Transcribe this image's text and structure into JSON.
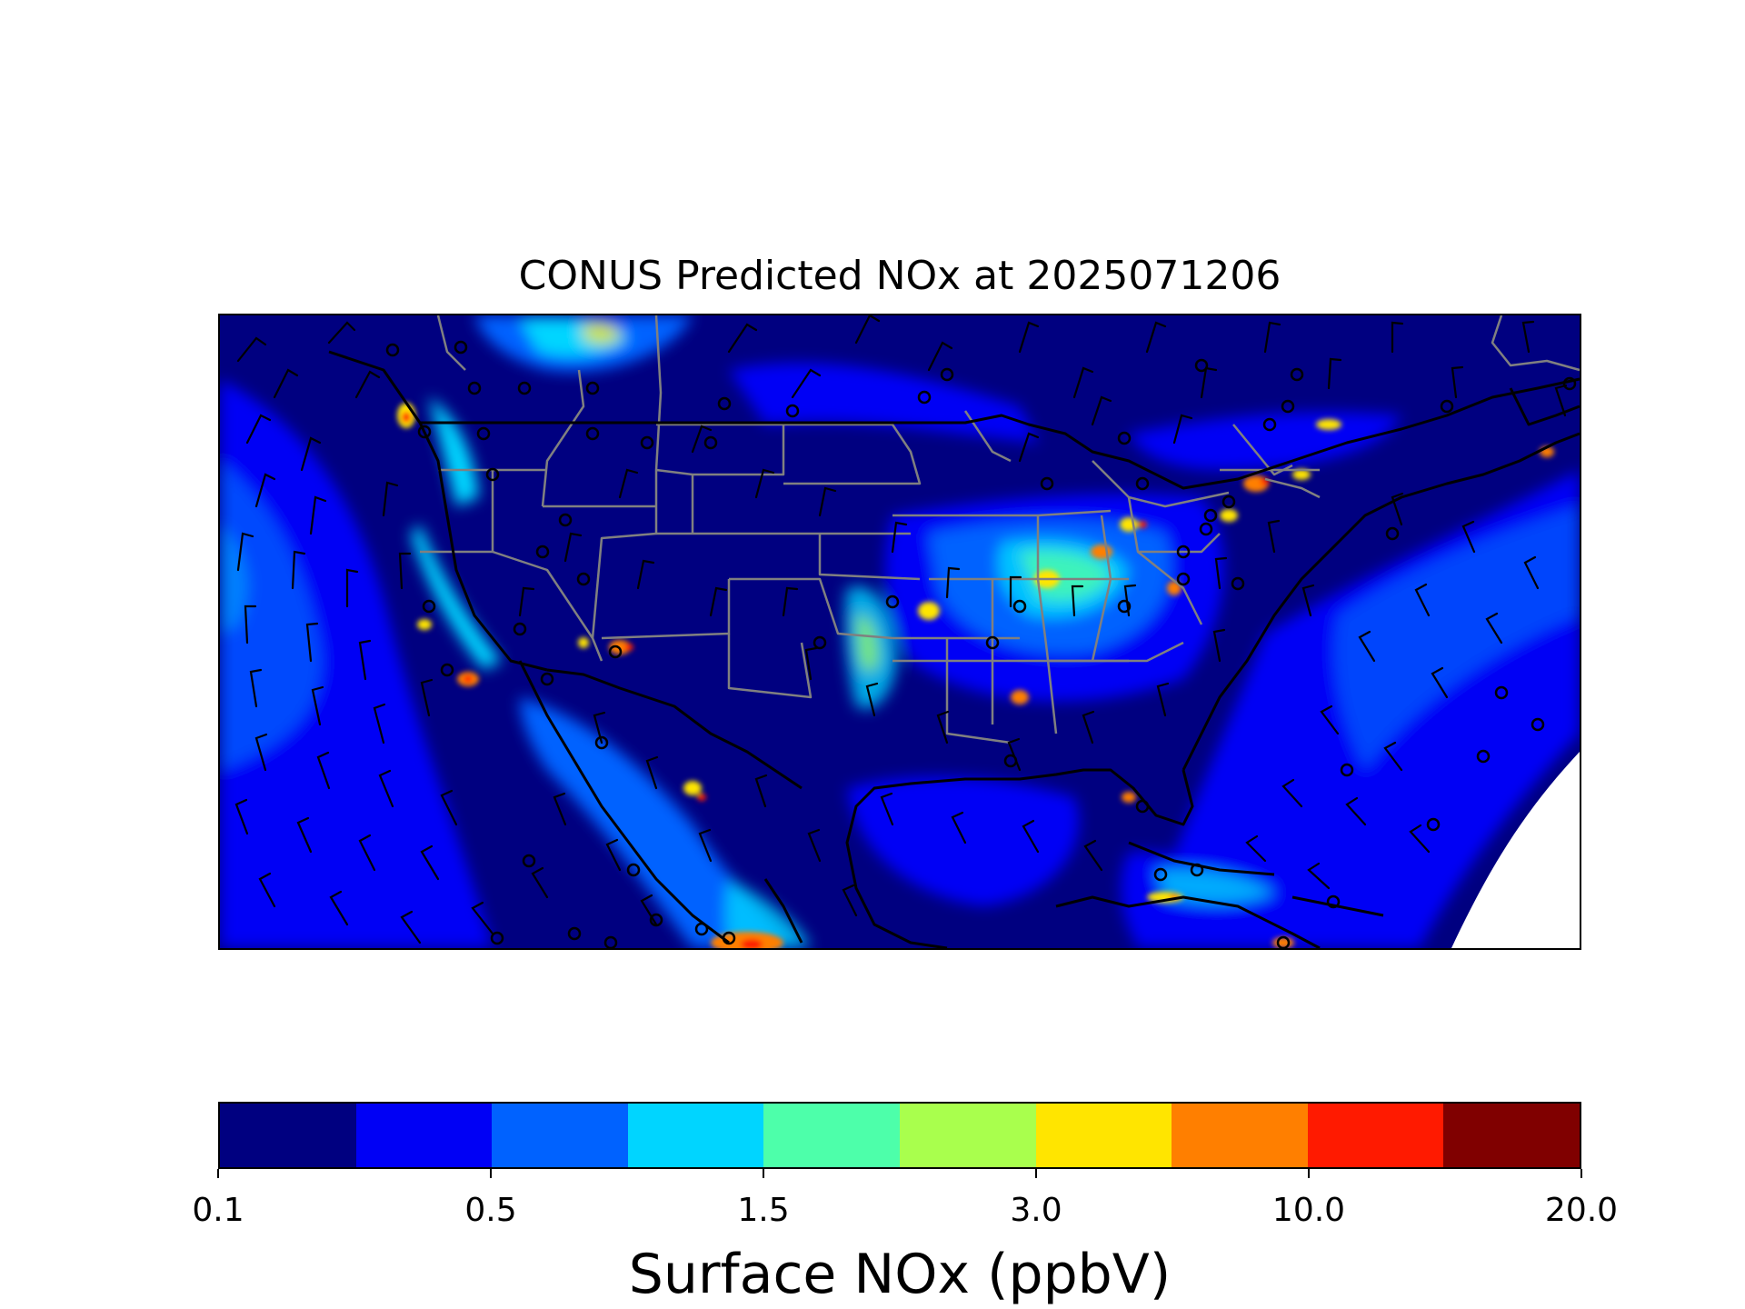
{
  "figure": {
    "title": "CONUS Predicted NOx at 2025071206"
  },
  "colorbar": {
    "label": "Surface NOx (ppbV)",
    "tick_labels": [
      "0.1",
      "0.5",
      "1.5",
      "3.0",
      "10.0",
      "20.0"
    ],
    "colors": [
      "#000080",
      "#0000f5",
      "#0062ff",
      "#00d5ff",
      "#4dffaa",
      "#a9ff4d",
      "#ffe500",
      "#ff7f00",
      "#ff1a00",
      "#800000"
    ]
  },
  "map": {
    "background_color": "#000080",
    "boundary_color_country": "#000000",
    "boundary_color_state": "#808080",
    "no_data_color": "#ffffff",
    "layers": [
      "nox-concentration-field",
      "wind-barbs",
      "state-borders",
      "country-borders",
      "coastlines"
    ]
  }
}
